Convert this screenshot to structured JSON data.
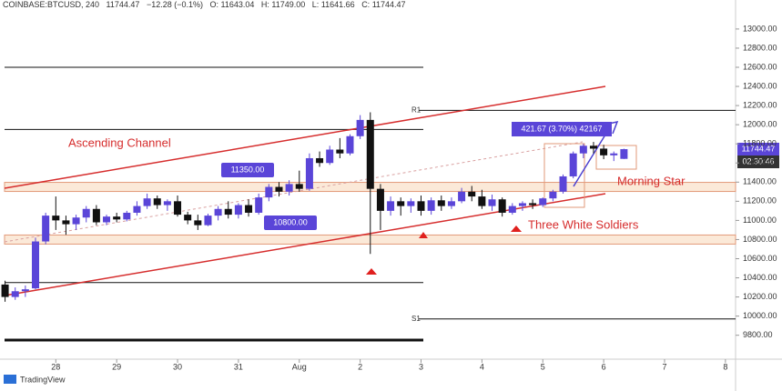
{
  "header": {
    "symbol": "COINBASE:BTCUSD, 240",
    "price": "11744.47",
    "change": "−12.28 (−0.1%)",
    "open": "O: 11643.04",
    "high": "H: 11749.00",
    "low": "L: 11641.66",
    "close": "C: 11744.47"
  },
  "chart_data": {
    "type": "candlestick",
    "ylim": [
      9550,
      13170
    ],
    "yticks": [
      {
        "value": 9800,
        "label": "9800.00"
      },
      {
        "value": 10000,
        "label": "10000.00"
      },
      {
        "value": 10200,
        "label": "10200.00"
      },
      {
        "value": 10400,
        "label": "10400.00"
      },
      {
        "value": 10600,
        "label": "10600.00"
      },
      {
        "value": 10800,
        "label": "10800.00"
      },
      {
        "value": 11000,
        "label": "11000.00"
      },
      {
        "value": 11200,
        "label": "11200.00"
      },
      {
        "value": 11400,
        "label": "11400.00"
      },
      {
        "value": 11600,
        "label": "11600.00"
      },
      {
        "value": 11800,
        "label": "11800.00"
      },
      {
        "value": 12000,
        "label": "12000.00"
      },
      {
        "value": 12200,
        "label": "12200.00"
      },
      {
        "value": 12400,
        "label": "12400.00"
      },
      {
        "value": 12600,
        "label": "12600.00"
      },
      {
        "value": 12800,
        "label": "12800.00"
      },
      {
        "value": 13000,
        "label": "13000.00"
      }
    ],
    "xlim": [
      -0.5,
      72
    ],
    "xticks": [
      {
        "value": 5,
        "label": "28"
      },
      {
        "value": 11,
        "label": "29"
      },
      {
        "value": 17,
        "label": "30"
      },
      {
        "value": 23,
        "label": "31"
      },
      {
        "value": 29,
        "label": "Aug"
      },
      {
        "value": 35,
        "label": "2"
      },
      {
        "value": 41,
        "label": "3"
      },
      {
        "value": 47,
        "label": "4"
      },
      {
        "value": 53,
        "label": "5"
      },
      {
        "value": 59,
        "label": "6"
      },
      {
        "value": 65,
        "label": "7"
      },
      {
        "value": 71,
        "label": "8"
      }
    ],
    "up_color": "#5a45d8",
    "down_color": "#111111",
    "ohlc": [
      [
        10330,
        10370,
        10150,
        10200
      ],
      [
        10200,
        10300,
        10170,
        10260
      ],
      [
        10260,
        10320,
        10200,
        10280
      ],
      [
        10290,
        10820,
        10280,
        10780
      ],
      [
        10780,
        11080,
        10750,
        11050
      ],
      [
        11050,
        11250,
        10900,
        11000
      ],
      [
        11000,
        11050,
        10850,
        10960
      ],
      [
        10960,
        11060,
        10900,
        11030
      ],
      [
        11030,
        11150,
        10980,
        11120
      ],
      [
        11120,
        11160,
        10950,
        10980
      ],
      [
        10980,
        11060,
        10950,
        11040
      ],
      [
        11040,
        11080,
        10980,
        11010
      ],
      [
        11010,
        11100,
        10990,
        11080
      ],
      [
        11080,
        11200,
        11050,
        11150
      ],
      [
        11150,
        11280,
        11120,
        11230
      ],
      [
        11230,
        11260,
        11120,
        11160
      ],
      [
        11160,
        11220,
        11100,
        11200
      ],
      [
        11200,
        11260,
        11040,
        11060
      ],
      [
        11060,
        11090,
        10960,
        11000
      ],
      [
        11000,
        11060,
        10900,
        10950
      ],
      [
        10950,
        11070,
        10940,
        11050
      ],
      [
        11050,
        11150,
        11000,
        11120
      ],
      [
        11120,
        11200,
        11020,
        11060
      ],
      [
        11060,
        11180,
        11020,
        11160
      ],
      [
        11160,
        11220,
        11040,
        11080
      ],
      [
        11080,
        11280,
        11060,
        11240
      ],
      [
        11240,
        11380,
        11200,
        11350
      ],
      [
        11350,
        11400,
        11250,
        11300
      ],
      [
        11300,
        11420,
        11260,
        11380
      ],
      [
        11380,
        11520,
        11300,
        11330
      ],
      [
        11330,
        11700,
        11310,
        11650
      ],
      [
        11650,
        11720,
        11560,
        11600
      ],
      [
        11600,
        11780,
        11580,
        11740
      ],
      [
        11740,
        11860,
        11650,
        11700
      ],
      [
        11700,
        11900,
        11680,
        11880
      ],
      [
        11880,
        12100,
        11850,
        12050
      ],
      [
        12050,
        12130,
        10650,
        11330
      ],
      [
        11330,
        11380,
        10900,
        11100
      ],
      [
        11100,
        11250,
        11050,
        11200
      ],
      [
        11200,
        11240,
        11050,
        11150
      ],
      [
        11150,
        11230,
        11080,
        11200
      ],
      [
        11200,
        11260,
        11050,
        11100
      ],
      [
        11100,
        11240,
        11060,
        11210
      ],
      [
        11210,
        11260,
        11100,
        11150
      ],
      [
        11150,
        11240,
        11120,
        11200
      ],
      [
        11200,
        11340,
        11180,
        11300
      ],
      [
        11300,
        11360,
        11200,
        11250
      ],
      [
        11250,
        11320,
        11120,
        11150
      ],
      [
        11150,
        11270,
        11100,
        11220
      ],
      [
        11220,
        11240,
        11040,
        11080
      ],
      [
        11080,
        11180,
        11060,
        11150
      ],
      [
        11150,
        11200,
        11100,
        11180
      ],
      [
        11180,
        11220,
        11120,
        11160
      ],
      [
        11160,
        11240,
        11140,
        11230
      ],
      [
        11230,
        11320,
        11200,
        11300
      ],
      [
        11300,
        11480,
        11280,
        11460
      ],
      [
        11460,
        11720,
        11440,
        11700
      ],
      [
        11700,
        11800,
        11650,
        11780
      ],
      [
        11780,
        11820,
        11700,
        11750
      ],
      [
        11750,
        11790,
        11640,
        11680
      ],
      [
        11680,
        11720,
        11620,
        11700
      ],
      [
        11643.04,
        11749,
        11641.66,
        11744.47
      ]
    ],
    "levels": [
      12600,
      11950,
      10350,
      9750
    ],
    "r1": {
      "label": "R1",
      "value": 12150
    },
    "s1": {
      "label": "S1",
      "value": 9970
    },
    "zones": [
      {
        "value": 11350,
        "label": "11350.00"
      },
      {
        "value": 10800,
        "label": "10800.00"
      }
    ],
    "annotations": {
      "channel": "Ascending Channel",
      "morning_star": "Morning Star",
      "soldiers": "Three White Soldiers",
      "measure": "421.67 (3.70%) 42167"
    },
    "price_tag": "11744.47",
    "countdown": "02:30:46"
  },
  "footer": {
    "brand": "TradingView"
  }
}
